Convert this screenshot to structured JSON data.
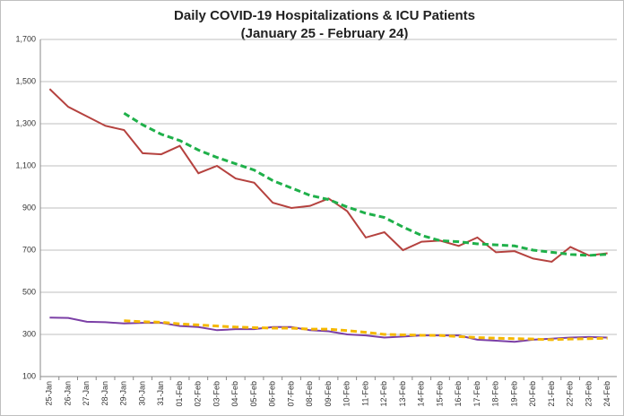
{
  "chart_data": {
    "type": "line",
    "title": "Daily COVID-19 Hospitalizations & ICU Patients",
    "subtitle": "(January 25 - February 24)",
    "categories": [
      "25-Jan",
      "26-Jan",
      "27-Jan",
      "28-Jan",
      "29-Jan",
      "30-Jan",
      "31-Jan",
      "01-Feb",
      "02-Feb",
      "03-Feb",
      "04-Feb",
      "05-Feb",
      "06-Feb",
      "07-Feb",
      "08-Feb",
      "09-Feb",
      "10-Feb",
      "11-Feb",
      "12-Feb",
      "13-Feb",
      "14-Feb",
      "15-Feb",
      "16-Feb",
      "17-Feb",
      "18-Feb",
      "19-Feb",
      "20-Feb",
      "21-Feb",
      "22-Feb",
      "23-Feb",
      "24-Feb"
    ],
    "series": [
      {
        "color": "#b5423f",
        "style": "solid",
        "values": [
          1465,
          1380,
          1335,
          1290,
          1270,
          1160,
          1155,
          1195,
          1065,
          1100,
          1040,
          1020,
          925,
          900,
          910,
          945,
          885,
          760,
          785,
          700,
          740,
          745,
          720,
          760,
          690,
          695,
          660,
          645,
          715,
          675,
          685
        ]
      },
      {
        "color": "#1fb04a",
        "style": "dashed",
        "values": [
          null,
          null,
          null,
          null,
          1350,
          1295,
          1250,
          1220,
          1175,
          1140,
          1110,
          1080,
          1030,
          995,
          960,
          940,
          905,
          875,
          855,
          810,
          770,
          745,
          740,
          730,
          725,
          720,
          700,
          690,
          680,
          675,
          680
        ]
      },
      {
        "color": "#7b3fa6",
        "style": "solid",
        "values": [
          380,
          378,
          360,
          358,
          352,
          355,
          355,
          340,
          335,
          320,
          325,
          325,
          335,
          335,
          320,
          315,
          300,
          295,
          285,
          290,
          295,
          295,
          295,
          275,
          270,
          265,
          275,
          280,
          285,
          288,
          285
        ]
      },
      {
        "color": "#f5b800",
        "style": "dashed",
        "values": [
          null,
          null,
          null,
          null,
          365,
          360,
          358,
          350,
          345,
          340,
          335,
          332,
          330,
          330,
          325,
          325,
          318,
          310,
          300,
          298,
          296,
          295,
          290,
          285,
          282,
          280,
          278,
          275,
          278,
          280,
          282
        ]
      }
    ],
    "ylim": [
      100,
      1700
    ],
    "yticks": [
      100,
      300,
      500,
      700,
      900,
      {
        "value": 1100,
        "label": "1,100"
      },
      {
        "value": 1300,
        "label": "1,300"
      },
      {
        "value": 1500,
        "label": "1,500"
      },
      {
        "value": 1700,
        "label": "1,700"
      }
    ],
    "grid": true
  }
}
